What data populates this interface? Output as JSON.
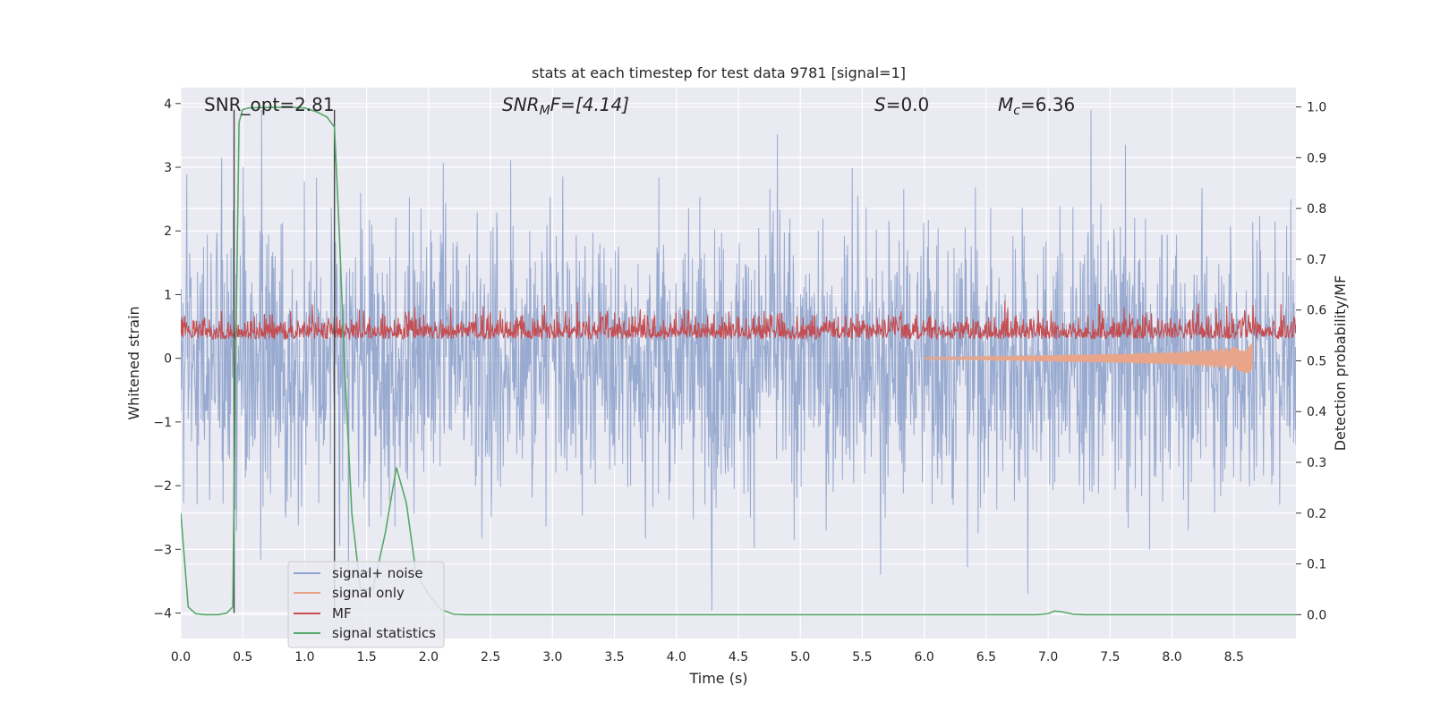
{
  "chart_data": {
    "type": "line",
    "title": "stats at each timestep for test data 9781 [signal=1]",
    "xlabel": "Time (s)",
    "ylabel_left": "Whitened strain",
    "ylabel_right": "Detection probability/MF",
    "xlim": [
      0.0,
      9.0
    ],
    "ylim_left": [
      -4.4,
      4.25
    ],
    "ylim_right": [
      -0.047,
      1.038
    ],
    "grid": true,
    "legend_position": "lower-left",
    "x_ticks": [
      "0.0",
      "0.5",
      "1.0",
      "1.5",
      "2.0",
      "2.5",
      "3.0",
      "3.5",
      "4.0",
      "4.5",
      "5.0",
      "5.5",
      "6.0",
      "6.5",
      "7.0",
      "7.5",
      "8.0",
      "8.5"
    ],
    "y_ticks_left": [
      "4",
      "3",
      "2",
      "1",
      "0",
      "−1",
      "−2",
      "−3",
      "−4"
    ],
    "y_ticks_right": [
      "1.0",
      "0.9",
      "0.8",
      "0.7",
      "0.6",
      "0.5",
      "0.4",
      "0.3",
      "0.2",
      "0.1",
      "0.0"
    ],
    "annotations": {
      "snr_opt": "SNR_opt=2.81",
      "snr_mf_symbol": "SNR",
      "snr_mf_sub": "M",
      "snr_mf_rest": "F=[4.14]",
      "s_symbol": "S",
      "s_value": "=0.0",
      "mc_symbol": "M",
      "mc_sub": "c",
      "mc_value": "=6.36"
    },
    "vertical_markers_x": [
      0.43,
      1.24
    ],
    "series": [
      {
        "name": "signal+ noise",
        "color": "#8fa3cc",
        "axis": "left",
        "description_envelope": {
          "upper_peaks_around": 2.5,
          "lower_troughs_around": -2.2,
          "max": 3.9,
          "min": -4.0
        }
      },
      {
        "name": "signal only",
        "color": "#e8a58a",
        "axis": "left",
        "x": [
          6.0,
          6.5,
          7.0,
          7.5,
          8.0,
          8.3,
          8.5,
          8.65
        ],
        "amplitude": [
          0.02,
          0.03,
          0.05,
          0.07,
          0.1,
          0.14,
          0.18,
          0.25
        ]
      },
      {
        "name": "MF",
        "color": "#c44e52",
        "axis": "left",
        "baseline": 0.3,
        "range": [
          0.0,
          1.0
        ]
      },
      {
        "name": "signal statistics",
        "color": "#55a868",
        "axis": "right",
        "x": [
          0.0,
          0.06,
          0.12,
          0.2,
          0.3,
          0.37,
          0.42,
          0.44,
          0.47,
          0.5,
          0.55,
          0.7,
          0.9,
          1.0,
          1.1,
          1.18,
          1.24,
          1.28,
          1.32,
          1.38,
          1.45,
          1.55,
          1.65,
          1.74,
          1.82,
          1.9,
          2.0,
          2.1,
          2.2,
          2.3,
          6.9,
          7.0,
          7.05,
          7.1,
          7.2,
          7.3,
          9.0
        ],
        "values": [
          0.2,
          0.015,
          0.002,
          0.0,
          0.0,
          0.003,
          0.015,
          0.45,
          0.97,
          0.995,
          0.998,
          0.999,
          0.999,
          0.998,
          0.99,
          0.98,
          0.96,
          0.75,
          0.5,
          0.2,
          0.05,
          0.05,
          0.16,
          0.29,
          0.22,
          0.08,
          0.04,
          0.01,
          0.001,
          0.0,
          0.0,
          0.002,
          0.007,
          0.006,
          0.001,
          0.0,
          0.0
        ]
      }
    ]
  }
}
